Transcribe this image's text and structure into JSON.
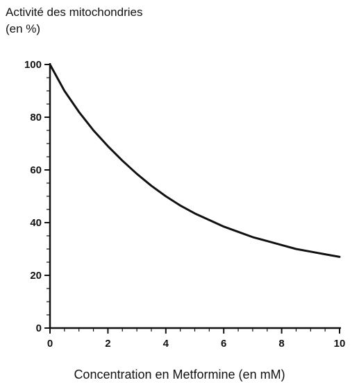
{
  "chart_data": {
    "type": "line",
    "title": "",
    "ylabel_lines": [
      "Activité des mitochondries",
      "(en %)"
    ],
    "xlabel": "Concentration en Metformine (en mM)",
    "xlim": [
      0,
      10
    ],
    "ylim": [
      0,
      100
    ],
    "x_ticks": [
      "0",
      "2",
      "4",
      "6",
      "8",
      "10"
    ],
    "y_ticks": [
      "0",
      "20",
      "40",
      "60",
      "80",
      "100"
    ],
    "grid": false,
    "series": [
      {
        "x": [
          0,
          0.5,
          1,
          1.5,
          2,
          2.5,
          3,
          3.5,
          4,
          4.5,
          5,
          5.5,
          6,
          6.5,
          7,
          7.5,
          8,
          8.5,
          9,
          9.5,
          10
        ],
        "values": [
          100,
          90,
          82,
          75,
          69,
          63.5,
          58.5,
          54,
          50,
          46.5,
          43.5,
          41,
          38.5,
          36.5,
          34.5,
          33,
          31.5,
          30,
          29,
          28,
          27
        ]
      }
    ]
  }
}
